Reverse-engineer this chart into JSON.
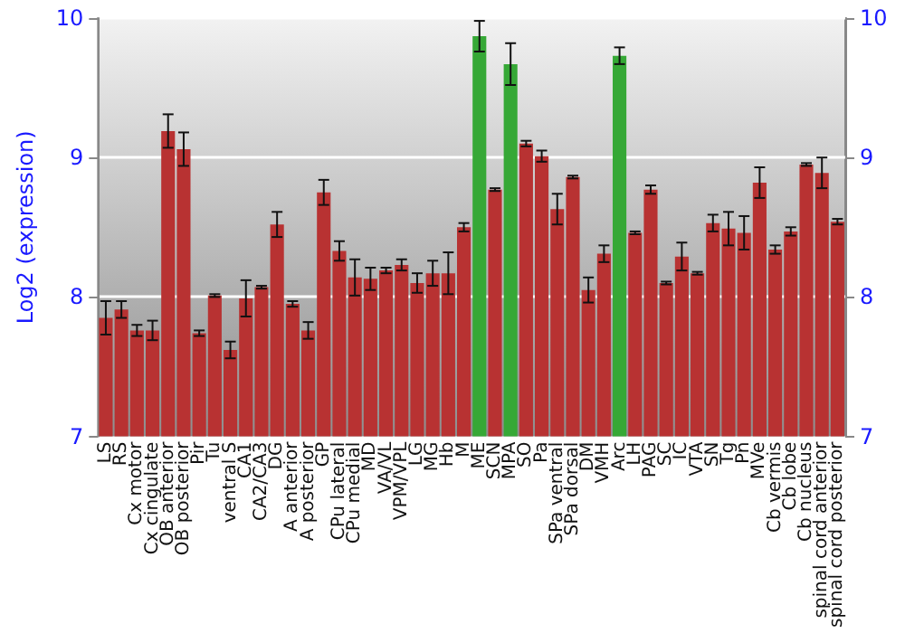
{
  "chart_data": {
    "type": "bar",
    "ylabel": "Log2 (expression)",
    "categories": [
      "LS",
      "RS",
      "Cx motor",
      "Cx cingulate",
      "OB anterior",
      "OB posterior",
      "Pir",
      "Tu",
      "ventral S",
      "CA1",
      "CA2/CA3",
      "DG",
      "A anterior",
      "A posterior",
      "GP",
      "CPu lateral",
      "CPu medial",
      "MD",
      "VA/VL",
      "VPM/VPL",
      "LG",
      "MG",
      "Hb",
      "M",
      "ME",
      "SCN",
      "MPA",
      "SO",
      "Pa",
      "SPa ventral",
      "SPa dorsal",
      "DM",
      "VMH",
      "Arc",
      "LH",
      "PAG",
      "SC",
      "IC",
      "VTA",
      "SN",
      "Tg",
      "Pn",
      "MVe",
      "Cb vermis",
      "Cb lobe",
      "Cb nucleus",
      "spinal cord anterior",
      "spinal cord posterior"
    ],
    "values": [
      7.85,
      7.91,
      7.76,
      7.76,
      9.19,
      9.06,
      7.74,
      8.01,
      7.62,
      7.99,
      8.07,
      8.52,
      7.95,
      7.76,
      8.75,
      8.33,
      8.14,
      8.13,
      8.19,
      8.23,
      8.1,
      8.17,
      8.17,
      8.5,
      9.87,
      8.77,
      9.67,
      9.1,
      9.01,
      8.63,
      8.86,
      8.05,
      8.31,
      9.73,
      8.46,
      8.77,
      8.1,
      8.29,
      8.17,
      8.53,
      8.49,
      8.46,
      8.82,
      8.34,
      8.47,
      8.95,
      8.89,
      8.54
    ],
    "errors": [
      0.12,
      0.06,
      0.04,
      0.07,
      0.12,
      0.12,
      0.02,
      0.01,
      0.06,
      0.13,
      0.01,
      0.09,
      0.02,
      0.06,
      0.09,
      0.07,
      0.13,
      0.08,
      0.02,
      0.04,
      0.07,
      0.09,
      0.15,
      0.03,
      0.11,
      0.01,
      0.15,
      0.02,
      0.04,
      0.11,
      0.01,
      0.09,
      0.06,
      0.06,
      0.01,
      0.03,
      0.01,
      0.1,
      0.01,
      0.06,
      0.12,
      0.12,
      0.11,
      0.03,
      0.03,
      0.01,
      0.11,
      0.02
    ],
    "colors": [
      "#b83232",
      "#b83232",
      "#b83232",
      "#b83232",
      "#b83232",
      "#b83232",
      "#b83232",
      "#b83232",
      "#b83232",
      "#b83232",
      "#b83232",
      "#b83232",
      "#b83232",
      "#b83232",
      "#b83232",
      "#b83232",
      "#b83232",
      "#b83232",
      "#b83232",
      "#b83232",
      "#b83232",
      "#b83232",
      "#b83232",
      "#b83232",
      "#36a836",
      "#b83232",
      "#36a836",
      "#b83232",
      "#b83232",
      "#b83232",
      "#b83232",
      "#b83232",
      "#b83232",
      "#36a836",
      "#b83232",
      "#b83232",
      "#b83232",
      "#b83232",
      "#b83232",
      "#b83232",
      "#b83232",
      "#b83232",
      "#b83232",
      "#b83232",
      "#b83232",
      "#b83232",
      "#b83232",
      "#b83232"
    ],
    "ylim": [
      7,
      10
    ],
    "yticks": [
      7,
      8,
      9,
      10
    ],
    "y2lim": [
      7,
      10
    ],
    "y2ticks": [
      7,
      8,
      9,
      10
    ],
    "grid": "y"
  }
}
